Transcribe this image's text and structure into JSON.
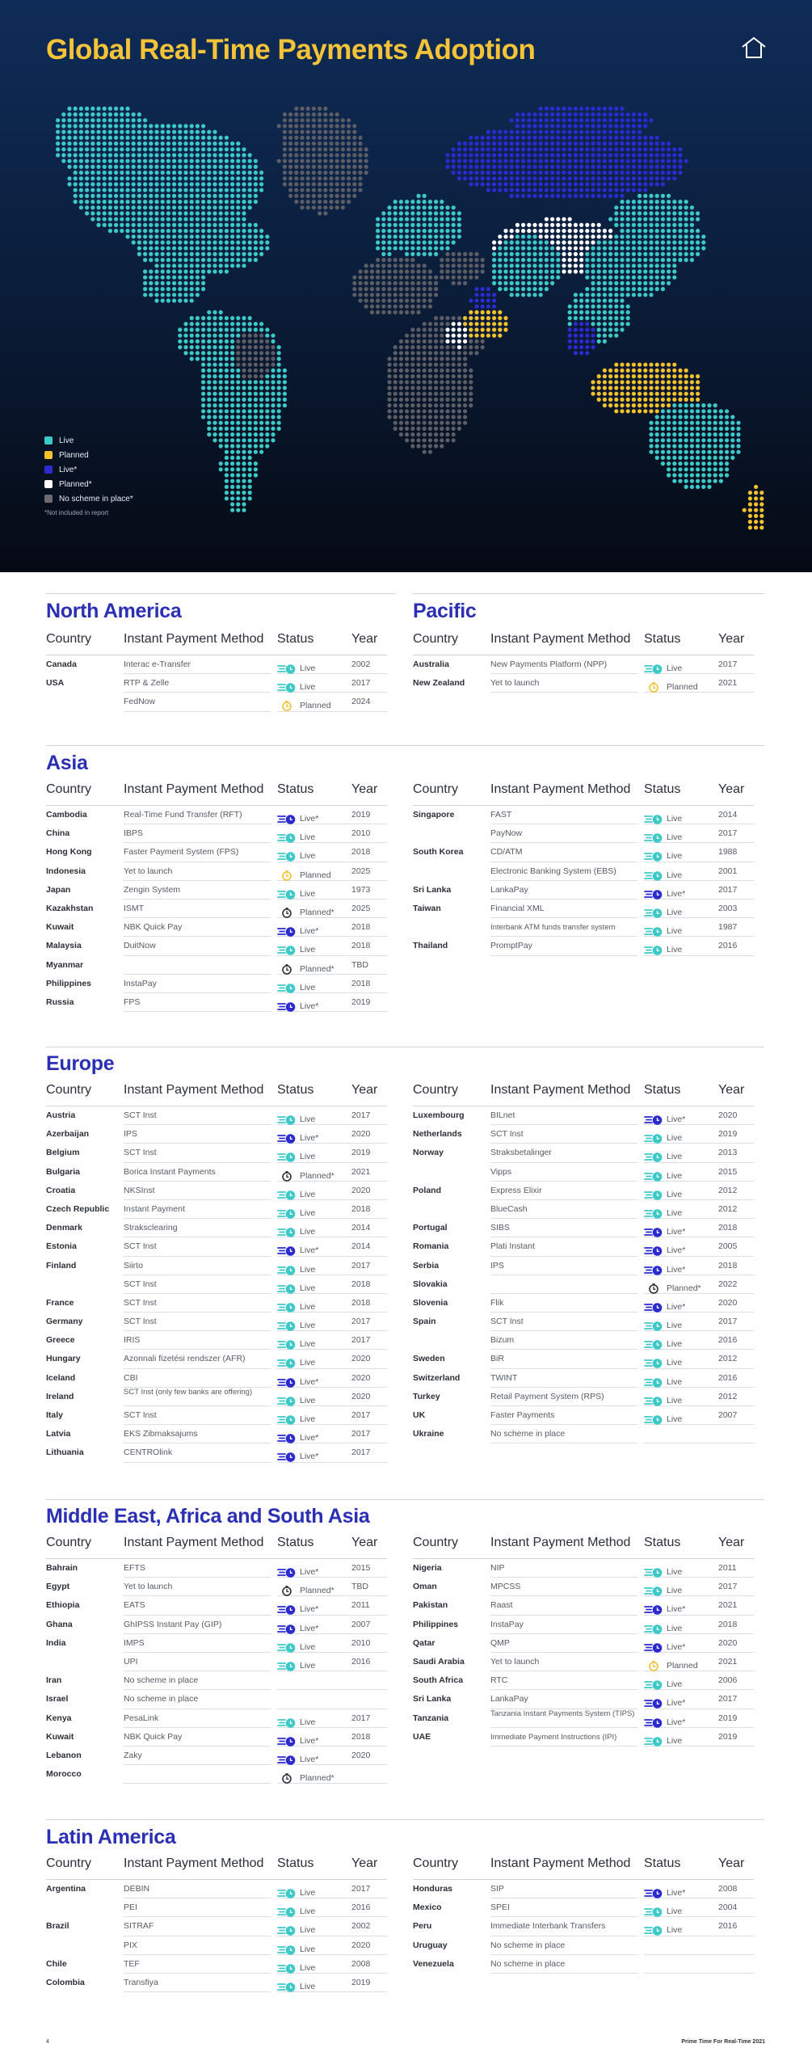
{
  "hero": {
    "title": "Global Real-Time Payments Adoption",
    "legend": [
      {
        "label": "Live",
        "color": "#3ec9c9"
      },
      {
        "label": "Planned",
        "color": "#f2c12e"
      },
      {
        "label": "Live*",
        "color": "#2b2bcf"
      },
      {
        "label": "Planned*",
        "color": "#ffffff"
      },
      {
        "label": "No scheme in place*",
        "color": "#6a6a70"
      }
    ],
    "legend_note": "*Not included in report"
  },
  "columns": {
    "country": "Country",
    "method": "Instant Payment Method",
    "status": "Status",
    "year": "Year"
  },
  "regions": [
    {
      "title": "North America",
      "tables": [
        [
          {
            "country": "Canada",
            "method": "Interac e-Transfer",
            "status": "Live",
            "year": "2002"
          },
          {
            "country": "USA",
            "method": "RTP & Zelle",
            "status": "Live",
            "year": "2017"
          },
          {
            "country": "",
            "method": "FedNow",
            "status": "Planned",
            "year": "2024"
          }
        ]
      ]
    },
    {
      "title": "Pacific",
      "tables": [
        [
          {
            "country": "Australia",
            "method": "New Payments Platform (NPP)",
            "status": "Live",
            "year": "2017"
          },
          {
            "country": "New Zealand",
            "method": "Yet to launch",
            "status": "Planned",
            "year": "2021"
          }
        ]
      ]
    },
    {
      "title": "Asia",
      "tables": [
        [
          {
            "country": "Cambodia",
            "method": "Real-Time Fund Transfer (RFT)",
            "status": "Live*",
            "year": "2019"
          },
          {
            "country": "China",
            "method": "IBPS",
            "status": "Live",
            "year": "2010"
          },
          {
            "country": "Hong Kong",
            "method": "Faster Payment System (FPS)",
            "status": "Live",
            "year": "2018"
          },
          {
            "country": "Indonesia",
            "method": "Yet to launch",
            "status": "Planned",
            "year": "2025"
          },
          {
            "country": "Japan",
            "method": "Zengin System",
            "status": "Live",
            "year": "1973"
          },
          {
            "country": "Kazakhstan",
            "method": "ISMT",
            "status": "Planned*",
            "year": "2025"
          },
          {
            "country": "Kuwait",
            "method": "NBK Quick Pay",
            "status": "Live*",
            "year": "2018"
          },
          {
            "country": "Malaysia",
            "method": "DuitNow",
            "status": "Live",
            "year": "2018"
          },
          {
            "country": "Myanmar",
            "method": "",
            "status": "Planned*",
            "year": "TBD"
          },
          {
            "country": "Philippines",
            "method": "InstaPay",
            "status": "Live",
            "year": "2018"
          },
          {
            "country": "Russia",
            "method": "FPS",
            "status": "Live*",
            "year": "2019"
          }
        ],
        [
          {
            "country": "Singapore",
            "method": "FAST",
            "status": "Live",
            "year": "2014"
          },
          {
            "country": "",
            "method": "PayNow",
            "status": "Live",
            "year": "2017"
          },
          {
            "country": "South Korea",
            "method": "CD/ATM",
            "status": "Live",
            "year": "1988"
          },
          {
            "country": "",
            "method": "Electronic Banking System (EBS)",
            "status": "Live",
            "year": "2001"
          },
          {
            "country": "Sri Lanka",
            "method": "LankaPay",
            "status": "Live*",
            "year": "2017"
          },
          {
            "country": "Taiwan",
            "method": "Financial XML",
            "status": "Live",
            "year": "2003"
          },
          {
            "country": "",
            "method": "Interbank ATM funds transfer system",
            "status": "Live",
            "year": "1987"
          },
          {
            "country": "Thailand",
            "method": "PromptPay",
            "status": "Live",
            "year": "2016"
          }
        ]
      ]
    },
    {
      "title": "Europe",
      "tables": [
        [
          {
            "country": "Austria",
            "method": "SCT Inst",
            "status": "Live",
            "year": "2017"
          },
          {
            "country": "Azerbaijan",
            "method": "IPS",
            "status": "Live*",
            "year": "2020"
          },
          {
            "country": "Belgium",
            "method": "SCT Inst",
            "status": "Live",
            "year": "2019"
          },
          {
            "country": "Bulgaria",
            "method": "Borica Instant Payments",
            "status": "Planned*",
            "year": "2021"
          },
          {
            "country": "Croatia",
            "method": "NKSInst",
            "status": "Live",
            "year": "2020"
          },
          {
            "country": "Czech Republic",
            "method": "Instant Payment",
            "status": "Live",
            "year": "2018"
          },
          {
            "country": "Denmark",
            "method": "Straksclearing",
            "status": "Live",
            "year": "2014"
          },
          {
            "country": "Estonia",
            "method": "SCT Inst",
            "status": "Live*",
            "year": "2014"
          },
          {
            "country": "Finland",
            "method": "Siirto",
            "status": "Live",
            "year": "2017"
          },
          {
            "country": "",
            "method": "SCT Inst",
            "status": "Live",
            "year": "2018"
          },
          {
            "country": "France",
            "method": "SCT Inst",
            "status": "Live",
            "year": "2018"
          },
          {
            "country": "Germany",
            "method": "SCT Inst",
            "status": "Live",
            "year": "2017"
          },
          {
            "country": "Greece",
            "method": "IRIS",
            "status": "Live",
            "year": "2017"
          },
          {
            "country": "Hungary",
            "method": "Azonnali fizetési rendszer (AFR)",
            "status": "Live",
            "year": "2020"
          },
          {
            "country": "Iceland",
            "method": "CBI",
            "status": "Live*",
            "year": "2020"
          },
          {
            "country": "Ireland",
            "method": "SCT Inst (only few banks are offering)",
            "status": "Live",
            "year": "2020"
          },
          {
            "country": "Italy",
            "method": "SCT Inst",
            "status": "Live",
            "year": "2017"
          },
          {
            "country": "Latvia",
            "method": "EKS Zibmaksajums",
            "status": "Live*",
            "year": "2017"
          },
          {
            "country": "Lithuania",
            "method": "CENTROlink",
            "status": "Live*",
            "year": "2017"
          }
        ],
        [
          {
            "country": "Luxembourg",
            "method": "BILnet",
            "status": "Live*",
            "year": "2020"
          },
          {
            "country": "Netherlands",
            "method": "SCT Inst",
            "status": "Live",
            "year": "2019"
          },
          {
            "country": "Norway",
            "method": "Straksbetalinger",
            "status": "Live",
            "year": "2013"
          },
          {
            "country": "",
            "method": "Vipps",
            "status": "Live",
            "year": "2015"
          },
          {
            "country": "Poland",
            "method": "Express Elixir",
            "status": "Live",
            "year": "2012"
          },
          {
            "country": "",
            "method": "BlueCash",
            "status": "Live",
            "year": "2012"
          },
          {
            "country": "Portugal",
            "method": "SIBS",
            "status": "Live*",
            "year": "2018"
          },
          {
            "country": "Romania",
            "method": "Plati Instant",
            "status": "Live*",
            "year": "2005"
          },
          {
            "country": "Serbia",
            "method": "IPS",
            "status": "Live*",
            "year": "2018"
          },
          {
            "country": "Slovakia",
            "method": "",
            "status": "Planned*",
            "year": "2022"
          },
          {
            "country": "Slovenia",
            "method": "Flik",
            "status": "Live*",
            "year": "2020"
          },
          {
            "country": "Spain",
            "method": "SCT Inst",
            "status": "Live",
            "year": "2017"
          },
          {
            "country": "",
            "method": "Bizum",
            "status": "Live",
            "year": "2016"
          },
          {
            "country": "Sweden",
            "method": "BiR",
            "status": "Live",
            "year": "2012"
          },
          {
            "country": "Switzerland",
            "method": "TWINT",
            "status": "Live",
            "year": "2016"
          },
          {
            "country": "Turkey",
            "method": "Retail Payment System (RPS)",
            "status": "Live",
            "year": "2012"
          },
          {
            "country": "UK",
            "method": "Faster Payments",
            "status": "Live",
            "year": "2007"
          },
          {
            "country": "Ukraine",
            "method": "No scheme in place",
            "status": "",
            "year": ""
          }
        ]
      ]
    },
    {
      "title": "Middle East, Africa and South Asia",
      "tables": [
        [
          {
            "country": "Bahrain",
            "method": "EFTS",
            "status": "Live*",
            "year": "2015"
          },
          {
            "country": "Egypt",
            "method": "Yet to launch",
            "status": "Planned*",
            "year": "TBD"
          },
          {
            "country": "Ethiopia",
            "method": "EATS",
            "status": "Live*",
            "year": "2011"
          },
          {
            "country": "Ghana",
            "method": "GhIPSS Instant Pay (GIP)",
            "status": "Live*",
            "year": "2007"
          },
          {
            "country": "India",
            "method": "IMPS",
            "status": "Live",
            "year": "2010"
          },
          {
            "country": "",
            "method": "UPI",
            "status": "Live",
            "year": "2016"
          },
          {
            "country": "Iran",
            "method": "No scheme in place",
            "status": "",
            "year": ""
          },
          {
            "country": "Israel",
            "method": "No scheme in place",
            "status": "",
            "year": ""
          },
          {
            "country": "Kenya",
            "method": "PesaLink",
            "status": "Live",
            "year": "2017"
          },
          {
            "country": "Kuwait",
            "method": "NBK Quick Pay",
            "status": "Live*",
            "year": "2018"
          },
          {
            "country": "Lebanon",
            "method": "Zaky",
            "status": "Live*",
            "year": "2020"
          },
          {
            "country": "Morocco",
            "method": "",
            "status": "Planned*",
            "year": ""
          }
        ],
        [
          {
            "country": "Nigeria",
            "method": "NIP",
            "status": "Live",
            "year": "2011"
          },
          {
            "country": "Oman",
            "method": "MPCSS",
            "status": "Live",
            "year": "2017"
          },
          {
            "country": "Pakistan",
            "method": "Raast",
            "status": "Live*",
            "year": "2021"
          },
          {
            "country": "Philippines",
            "method": "InstaPay",
            "status": "Live",
            "year": "2018"
          },
          {
            "country": "Qatar",
            "method": "QMP",
            "status": "Live*",
            "year": "2020"
          },
          {
            "country": "Saudi Arabia",
            "method": "Yet to launch",
            "status": "Planned",
            "year": "2021"
          },
          {
            "country": "South Africa",
            "method": "RTC",
            "status": "Live",
            "year": "2006"
          },
          {
            "country": "Sri Lanka",
            "method": "LankaPay",
            "status": "Live*",
            "year": "2017"
          },
          {
            "country": "Tanzania",
            "method": "Tanzania Instant Payments System (TIPS)",
            "status": "Live*",
            "year": "2019"
          },
          {
            "country": "UAE",
            "method": "Immediate Payment Instructions (IPI)",
            "status": "Live",
            "year": "2019"
          }
        ]
      ]
    },
    {
      "title": "Latin America",
      "tables": [
        [
          {
            "country": "Argentina",
            "method": "DEBIN",
            "status": "Live",
            "year": "2017"
          },
          {
            "country": "",
            "method": "PEI",
            "status": "Live",
            "year": "2016"
          },
          {
            "country": "Brazil",
            "method": "SITRAF",
            "status": "Live",
            "year": "2002"
          },
          {
            "country": "",
            "method": "PIX",
            "status": "Live",
            "year": "2020"
          },
          {
            "country": "Chile",
            "method": "TEF",
            "status": "Live",
            "year": "2008"
          },
          {
            "country": "Colombia",
            "method": "Transfiya",
            "status": "Live",
            "year": "2019"
          }
        ],
        [
          {
            "country": "Honduras",
            "method": "SIP",
            "status": "Live*",
            "year": "2008"
          },
          {
            "country": "Mexico",
            "method": "SPEI",
            "status": "Live",
            "year": "2004"
          },
          {
            "country": "Peru",
            "method": "Immediate Interbank Transfers",
            "status": "Live",
            "year": "2016"
          },
          {
            "country": "Uruguay",
            "method": "No scheme in place",
            "status": "",
            "year": ""
          },
          {
            "country": "Venezuela",
            "method": "No scheme in place",
            "status": "",
            "year": ""
          }
        ]
      ]
    }
  ],
  "footer": {
    "page": "4",
    "title": "Prime Time For Real-Time 2021"
  },
  "colors": {
    "live": "#3ec9c9",
    "live_star": "#2b2bcf",
    "planned": "#f2c12e",
    "planned_star": "#2a2f3a",
    "heading": "#2a2fb4",
    "title": "#f5c338"
  }
}
